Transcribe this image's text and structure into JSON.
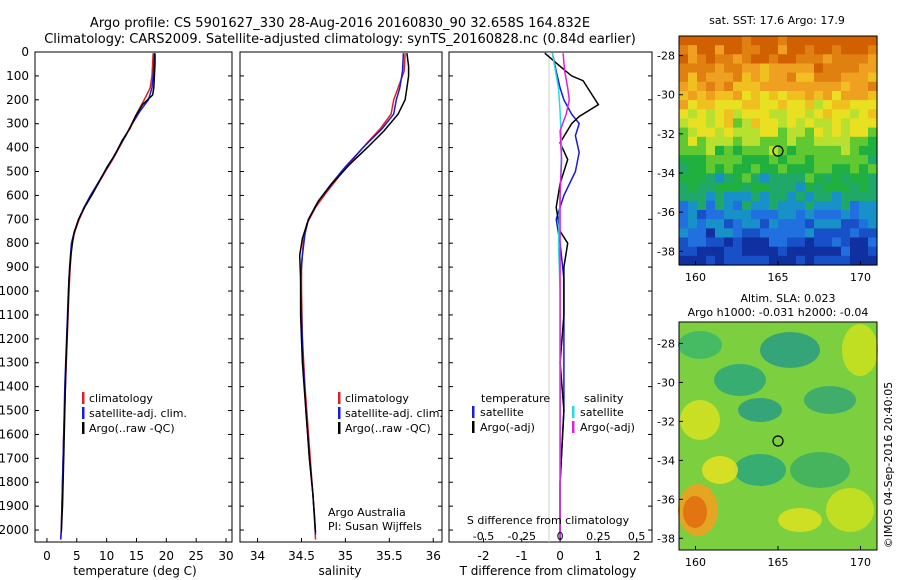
{
  "header": {
    "title_line1": "Argo profile: CS 5901627_330 28-Aug-2016 20160830_90 32.658S 164.832E",
    "title_line2": "Climatology: CARS2009. Satellite-adjusted climatology: synTS_20160828.nc (0.84d earlier)"
  },
  "depth_ticks": [
    "0",
    "100",
    "200",
    "300",
    "400",
    "500",
    "600",
    "700",
    "800",
    "900",
    "1000",
    "1100",
    "1200",
    "1300",
    "1400",
    "1500",
    "1600",
    "1700",
    "1800",
    "1900",
    "2000"
  ],
  "colors": {
    "climatology": "#e02020",
    "satellite": "#1a1ad8",
    "argo": "#000000",
    "cyan": "#22dddd",
    "magenta": "#e020e0"
  },
  "chart_data": [
    {
      "type": "line",
      "xlabel": "temperature (deg C)",
      "x_ticks": [
        "0",
        "5",
        "10",
        "15",
        "20",
        "25",
        "30"
      ],
      "xlim": [
        -2,
        31
      ],
      "ylim": [
        2050,
        0
      ],
      "legend": [
        "climatology",
        "satellite-adj. clim.",
        "Argo(..raw -QC)"
      ],
      "series": [
        {
          "name": "climatology",
          "points": [
            [
              17.8,
              5
            ],
            [
              17.7,
              50
            ],
            [
              17.6,
              100
            ],
            [
              17.3,
              150
            ],
            [
              16.3,
              200
            ],
            [
              15.2,
              250
            ],
            [
              14.2,
              300
            ],
            [
              13.2,
              350
            ],
            [
              12.1,
              400
            ],
            [
              11.0,
              450
            ],
            [
              9.8,
              500
            ],
            [
              8.6,
              550
            ],
            [
              7.4,
              600
            ],
            [
              6.3,
              650
            ],
            [
              5.4,
              700
            ],
            [
              4.7,
              750
            ],
            [
              4.2,
              800
            ],
            [
              3.9,
              900
            ],
            [
              3.7,
              1000
            ],
            [
              3.4,
              1200
            ],
            [
              3.1,
              1400
            ],
            [
              2.8,
              1600
            ],
            [
              2.6,
              1800
            ],
            [
              2.4,
              2000
            ],
            [
              2.3,
              2040
            ]
          ]
        },
        {
          "name": "satellite-adj. clim.",
          "points": [
            [
              18.0,
              5
            ],
            [
              17.9,
              50
            ],
            [
              17.8,
              100
            ],
            [
              17.6,
              150
            ],
            [
              17.0,
              200
            ],
            [
              15.5,
              250
            ],
            [
              14.3,
              300
            ],
            [
              13.2,
              350
            ],
            [
              12.0,
              400
            ],
            [
              10.9,
              450
            ],
            [
              9.7,
              500
            ],
            [
              8.5,
              550
            ],
            [
              7.3,
              600
            ],
            [
              6.2,
              650
            ],
            [
              5.3,
              700
            ],
            [
              4.6,
              750
            ],
            [
              4.1,
              800
            ],
            [
              3.8,
              900
            ],
            [
              3.6,
              1000
            ],
            [
              3.3,
              1200
            ],
            [
              3.0,
              1400
            ],
            [
              2.8,
              1600
            ],
            [
              2.6,
              1800
            ],
            [
              2.4,
              2000
            ],
            [
              2.3,
              2040
            ]
          ]
        },
        {
          "name": "Argo(..raw -QC)",
          "points": [
            [
              18.1,
              5
            ],
            [
              18.1,
              50
            ],
            [
              18.0,
              100
            ],
            [
              17.9,
              150
            ],
            [
              17.7,
              180
            ],
            [
              16.0,
              220
            ],
            [
              14.8,
              270
            ],
            [
              13.9,
              320
            ],
            [
              12.6,
              370
            ],
            [
              11.4,
              430
            ],
            [
              10.1,
              480
            ],
            [
              8.8,
              540
            ],
            [
              7.5,
              600
            ],
            [
              6.3,
              650
            ],
            [
              5.3,
              700
            ],
            [
              4.5,
              760
            ],
            [
              4.0,
              850
            ],
            [
              3.7,
              950
            ],
            [
              3.5,
              1100
            ],
            [
              3.2,
              1300
            ],
            [
              3.0,
              1500
            ],
            [
              2.8,
              1700
            ],
            [
              2.6,
              1900
            ],
            [
              2.4,
              2010
            ]
          ]
        }
      ]
    },
    {
      "type": "line",
      "xlabel": "salinity",
      "x_ticks": [
        "34",
        "34.5",
        "35",
        "35.5",
        "36"
      ],
      "xlim": [
        33.8,
        36.1
      ],
      "ylim": [
        2050,
        0
      ],
      "legend": [
        "climatology",
        "satellite-adj. clim.",
        "Argo(..raw -QC)"
      ],
      "annotations": [
        "Argo Australia",
        "PI: Susan Wijffels"
      ],
      "series": [
        {
          "name": "climatology",
          "points": [
            [
              35.68,
              5
            ],
            [
              35.67,
              80
            ],
            [
              35.6,
              150
            ],
            [
              35.55,
              200
            ],
            [
              35.52,
              260
            ],
            [
              35.4,
              320
            ],
            [
              35.25,
              380
            ],
            [
              35.13,
              430
            ],
            [
              34.97,
              500
            ],
            [
              34.8,
              580
            ],
            [
              34.66,
              650
            ],
            [
              34.56,
              720
            ],
            [
              34.52,
              800
            ],
            [
              34.5,
              900
            ],
            [
              34.5,
              1000
            ],
            [
              34.51,
              1200
            ],
            [
              34.54,
              1400
            ],
            [
              34.58,
              1600
            ],
            [
              34.62,
              1800
            ],
            [
              34.65,
              1950
            ],
            [
              34.66,
              2040
            ]
          ]
        },
        {
          "name": "satellite-adj. clim.",
          "points": [
            [
              35.66,
              5
            ],
            [
              35.65,
              80
            ],
            [
              35.62,
              150
            ],
            [
              35.58,
              200
            ],
            [
              35.55,
              260
            ],
            [
              35.42,
              320
            ],
            [
              35.2,
              400
            ],
            [
              35.0,
              480
            ],
            [
              34.82,
              560
            ],
            [
              34.68,
              630
            ],
            [
              34.58,
              700
            ],
            [
              34.54,
              760
            ],
            [
              34.51,
              850
            ],
            [
              34.49,
              950
            ],
            [
              34.5,
              1100
            ],
            [
              34.52,
              1300
            ],
            [
              34.55,
              1500
            ],
            [
              34.59,
              1700
            ],
            [
              34.63,
              1850
            ],
            [
              34.66,
              2020
            ]
          ]
        },
        {
          "name": "Argo(..raw -QC)",
          "points": [
            [
              35.7,
              5
            ],
            [
              35.72,
              60
            ],
            [
              35.72,
              100
            ],
            [
              35.7,
              150
            ],
            [
              35.68,
              200
            ],
            [
              35.6,
              260
            ],
            [
              35.44,
              330
            ],
            [
              35.25,
              400
            ],
            [
              35.05,
              470
            ],
            [
              34.85,
              550
            ],
            [
              34.7,
              620
            ],
            [
              34.58,
              700
            ],
            [
              34.51,
              780
            ],
            [
              34.48,
              850
            ],
            [
              34.49,
              950
            ],
            [
              34.49,
              1100
            ],
            [
              34.51,
              1300
            ],
            [
              34.55,
              1500
            ],
            [
              34.59,
              1700
            ],
            [
              34.63,
              1850
            ],
            [
              34.66,
              2010
            ]
          ]
        }
      ]
    },
    {
      "type": "line",
      "xlabel": "T difference from climatology",
      "x_ticks": [
        "-2",
        "-1",
        "0",
        "1",
        "2"
      ],
      "xlim": [
        -2.9,
        2.4
      ],
      "top_xlabel": "S difference from climatology",
      "top_x_ticks": [
        "-0.5",
        "-0.25",
        "0",
        "0.25",
        "0.5"
      ],
      "ylim": [
        2050,
        0
      ],
      "legend_title_t": "temperature",
      "legend_title_s": "salinity",
      "legend_t": [
        "satellite",
        "Argo(-adj)"
      ],
      "legend_s": [
        "satellite",
        "Argo(-adj)"
      ],
      "series": [
        {
          "name": "T satellite",
          "points": [
            [
              -0.2,
              5
            ],
            [
              -0.1,
              80
            ],
            [
              0.0,
              150
            ],
            [
              0.1,
              200
            ],
            [
              0.3,
              260
            ],
            [
              0.5,
              300
            ],
            [
              0.4,
              350
            ],
            [
              0.5,
              420
            ],
            [
              0.4,
              500
            ],
            [
              0.1,
              600
            ],
            [
              -0.1,
              700
            ],
            [
              0.0,
              800
            ],
            [
              0.1,
              950
            ],
            [
              0.1,
              1200
            ],
            [
              0.1,
              1500
            ],
            [
              0.0,
              1800
            ],
            [
              0.0,
              2040
            ]
          ]
        },
        {
          "name": "T Argo(-adj)",
          "points": [
            [
              -0.4,
              5
            ],
            [
              0.0,
              60
            ],
            [
              0.3,
              100
            ],
            [
              0.6,
              120
            ],
            [
              0.8,
              170
            ],
            [
              1.0,
              220
            ],
            [
              0.5,
              270
            ],
            [
              0.3,
              300
            ],
            [
              0.0,
              380
            ],
            [
              0.2,
              450
            ],
            [
              0.0,
              550
            ],
            [
              -0.1,
              650
            ],
            [
              0.0,
              750
            ],
            [
              0.2,
              800
            ],
            [
              0.1,
              900
            ],
            [
              0.1,
              1100
            ],
            [
              0.0,
              1300
            ],
            [
              0.1,
              1500
            ],
            [
              0.0,
              1800
            ],
            [
              0.0,
              2020
            ]
          ]
        },
        {
          "name": "S satellite",
          "points": [
            [
              -0.05,
              5
            ],
            [
              -0.03,
              80
            ],
            [
              -0.01,
              150
            ],
            [
              0.0,
              250
            ],
            [
              0.01,
              400
            ],
            [
              0.0,
              600
            ],
            [
              -0.01,
              800
            ],
            [
              0.0,
              1000
            ],
            [
              0.0,
              1300
            ],
            [
              0.0,
              1600
            ],
            [
              0.0,
              1900
            ],
            [
              0.0,
              2030
            ]
          ]
        },
        {
          "name": "S Argo(-adj)",
          "points": [
            [
              0.02,
              5
            ],
            [
              0.03,
              80
            ],
            [
              0.05,
              150
            ],
            [
              0.06,
              200
            ],
            [
              0.04,
              260
            ],
            [
              0.0,
              330
            ],
            [
              0.01,
              450
            ],
            [
              0.0,
              600
            ],
            [
              0.0,
              800
            ],
            [
              0.0,
              1000
            ],
            [
              0.0,
              1300
            ],
            [
              0.0,
              1600
            ],
            [
              0.0,
              1900
            ],
            [
              0.0,
              2030
            ]
          ]
        }
      ]
    }
  ],
  "maps": {
    "sst_title": "sat. SST: 17.6 Argo: 17.9",
    "sla_title_line1": "Altim. SLA: 0.023",
    "sla_title_line2": "Argo h1000: -0.031 h2000: -0.04",
    "lat_ticks": [
      "-28",
      "-30",
      "-32",
      "-34",
      "-36",
      "-38"
    ],
    "lon_ticks": [
      "160",
      "165",
      "170"
    ],
    "credit": "©IMOS 04-Sep-2016 20:40:05"
  }
}
